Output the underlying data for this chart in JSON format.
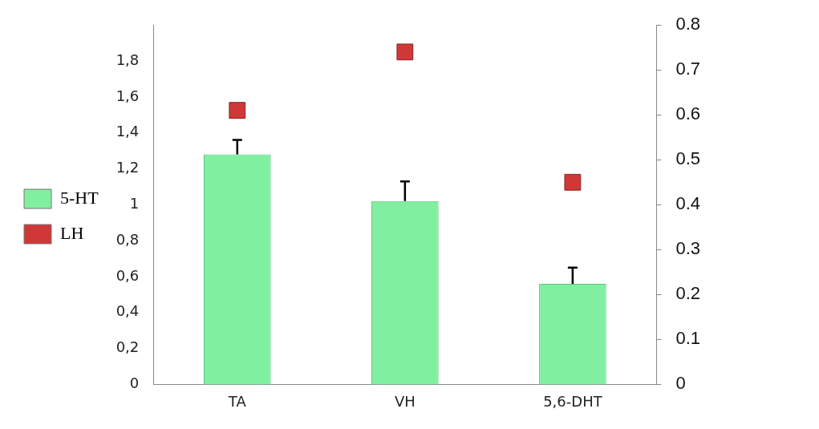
{
  "chart_data": {
    "type": "bar",
    "categories": [
      "TA",
      "VH",
      "5,6-DHT"
    ],
    "series": [
      {
        "name": "5-HT",
        "color": "#80f0a0",
        "values": [
          1.28,
          1.02,
          0.56
        ],
        "errors": [
          [
            1.28,
            1.36
          ],
          [
            1.02,
            1.13
          ],
          [
            0.56,
            0.65
          ]
        ]
      },
      {
        "name": "LH",
        "type": "scatter",
        "axis": "y2",
        "color": "#d03838",
        "values": [
          0.61,
          0.74,
          0.45
        ]
      }
    ],
    "ylim": [
      0,
      2
    ],
    "yticks": [
      {
        "value": 0,
        "label": "0"
      },
      {
        "value": 0.2,
        "label": "0,2"
      },
      {
        "value": 0.4,
        "label": "0,4"
      },
      {
        "value": 0.6,
        "label": "0,6"
      },
      {
        "value": 0.8,
        "label": "0,8"
      },
      {
        "value": 1,
        "label": "1"
      },
      {
        "value": 1.2,
        "label": "1,2"
      },
      {
        "value": 1.4,
        "label": "1,4"
      },
      {
        "value": 1.6,
        "label": "1,6"
      },
      {
        "value": 1.8,
        "label": "1,8"
      }
    ],
    "y2lim": [
      0,
      0.8
    ],
    "y2ticks": [
      0,
      0.1,
      0.2,
      0.3,
      0.4,
      0.5,
      0.6,
      0.7,
      0.8
    ],
    "marker": "square",
    "legend": "left",
    "grid": false
  }
}
